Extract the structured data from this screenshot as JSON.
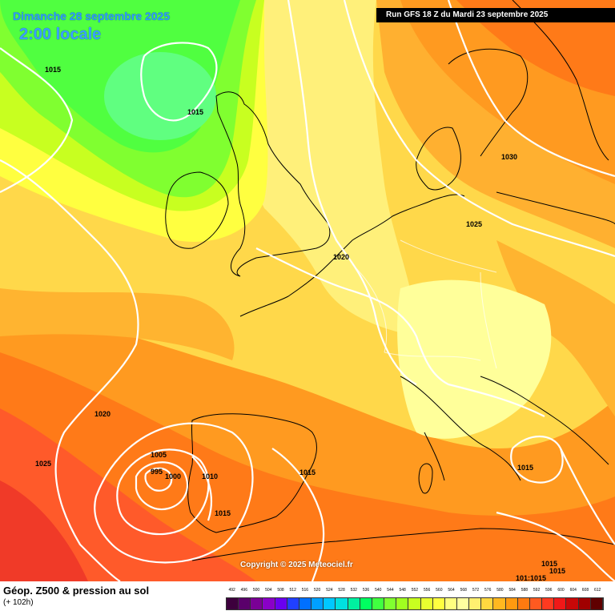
{
  "header": {
    "date_title": "Dimanche 28 septembre 2025",
    "time_title": "2:00 locale",
    "run_info": "Run GFS 18 Z du Mardi 23 septembre 2025"
  },
  "copyright": "Copyright © 2025 Meteociel.fr",
  "footer": {
    "title": "Géop. Z500 & pression au sol",
    "subtitle": "(+ 102h)"
  },
  "isobar_labels": [
    "1015",
    "1015",
    "1030",
    "1025",
    "1020",
    "1020",
    "1025",
    "1005",
    "995",
    "1000",
    "1010",
    "1015",
    "1015",
    "1015",
    "1015",
    "1015",
    "101:1015"
  ],
  "legend": {
    "values": [
      "492",
      "496",
      "500",
      "504",
      "508",
      "512",
      "516",
      "520",
      "524",
      "528",
      "532",
      "536",
      "540",
      "544",
      "548",
      "552",
      "556",
      "560",
      "564",
      "568",
      "572",
      "576",
      "580",
      "584",
      "588",
      "592",
      "596",
      "600",
      "604",
      "608",
      "612"
    ],
    "colors": [
      "#3d003d",
      "#5a006b",
      "#7a0096",
      "#8a00c8",
      "#6a00f0",
      "#2040ff",
      "#0070ff",
      "#00a0ff",
      "#00c8ff",
      "#00e0e0",
      "#00f0a0",
      "#00ff60",
      "#40ff40",
      "#80ff30",
      "#a0ff20",
      "#c8ff20",
      "#e8ff30",
      "#ffff40",
      "#ffff80",
      "#ffffa0",
      "#fff070",
      "#ffd840",
      "#ffb820",
      "#ff9a10",
      "#ff7a10",
      "#ff5a20",
      "#ff3a20",
      "#f01818",
      "#c80808",
      "#a00000",
      "#600000"
    ]
  }
}
